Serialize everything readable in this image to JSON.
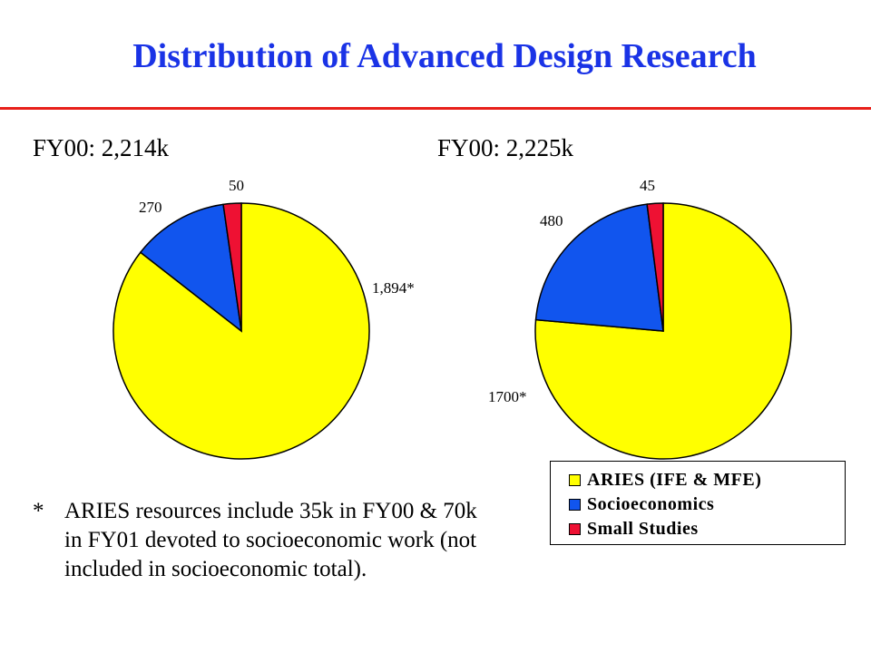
{
  "title": "Distribution of Advanced Design Research",
  "colors": {
    "title": "#1a33e6",
    "rule": "#e8201a",
    "aries": "#ffff00",
    "socio": "#1155ee",
    "small": "#ee1133"
  },
  "chart_data": [
    {
      "type": "pie",
      "title": "FY00: 2,214k",
      "series": [
        {
          "name": "ARIES (IFE & MFE)",
          "value": 1894,
          "label": "1,894*"
        },
        {
          "name": "Socioeconomics",
          "value": 270,
          "label": "270"
        },
        {
          "name": "Small Studies",
          "value": 50,
          "label": "50"
        }
      ]
    },
    {
      "type": "pie",
      "title": "FY00: 2,225k",
      "series": [
        {
          "name": "ARIES (IFE & MFE)",
          "value": 1700,
          "label": "1700*"
        },
        {
          "name": "Socioeconomics",
          "value": 480,
          "label": "480"
        },
        {
          "name": "Small Studies",
          "value": 45,
          "label": "45"
        }
      ],
      "legend": "bottom-right"
    }
  ],
  "legend": {
    "items": [
      {
        "label": "ARIES (IFE & MFE)"
      },
      {
        "label": "Socioeconomics"
      },
      {
        "label": "Small Studies"
      }
    ]
  },
  "footnote": {
    "marker": "*",
    "text": "ARIES resources include 35k in FY00 & 70k in FY01 devoted to socioeconomic work (not included in socioeconomic total)."
  }
}
